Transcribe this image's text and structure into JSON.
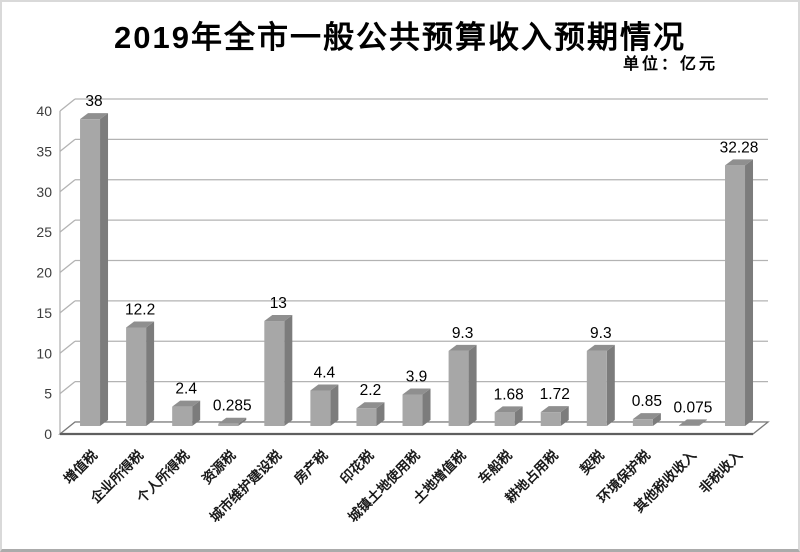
{
  "chart_data": {
    "type": "bar",
    "title": "2019年全市一般公共预算收入预期情况",
    "unit_label": "单位：亿元",
    "categories": [
      "增值税",
      "企业所得税",
      "个人所得税",
      "资源税",
      "城市维护建设税",
      "房产税",
      "印花税",
      "城镇土地使用税",
      "土地增值税",
      "车船税",
      "耕地占用税",
      "契税",
      "环境保护税",
      "其他税收收入",
      "非税收入"
    ],
    "values": [
      38,
      12.2,
      2.4,
      0.285,
      13,
      4.4,
      2.2,
      3.9,
      9.3,
      1.68,
      1.72,
      9.3,
      0.85,
      0.075,
      32.28
    ],
    "yticks": [
      0,
      5,
      10,
      15,
      20,
      25,
      30,
      35,
      40
    ],
    "ylim": [
      0,
      40
    ],
    "grid": true,
    "legend": false,
    "style": "3d-bar",
    "colors": {
      "bar_front": "#a7a7a7",
      "bar_side": "#7c7c7c",
      "bar_top": "#8f8f8f",
      "grid_line": "#b3b3b3",
      "floor_border": "#7a7a7a",
      "floor_front_edge": "#5f5f5f",
      "value_text": "#000000",
      "tick_text": "#3d3d3d",
      "category_text": "#1a1a1a"
    }
  }
}
